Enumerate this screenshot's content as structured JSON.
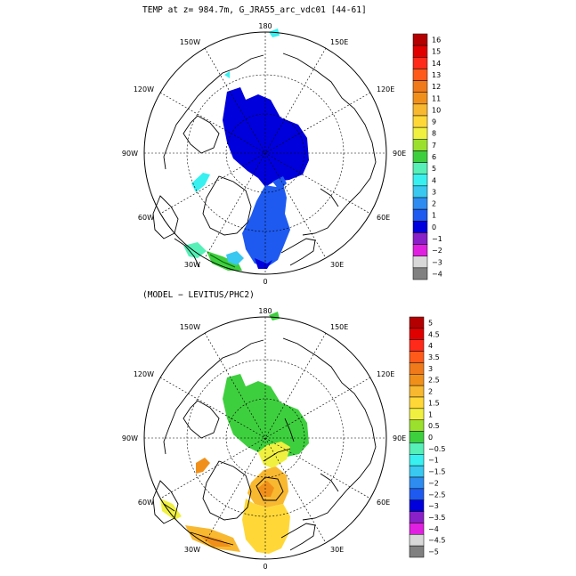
{
  "panel_top": {
    "title": "TEMP at z= 984.7m, G_JRA55_arc_vdc01 [44-61]",
    "lon_labels": [
      "180",
      "150E",
      "120E",
      "90E",
      "60E",
      "30E",
      "0",
      "30W",
      "60W",
      "90W",
      "120W",
      "150W"
    ],
    "colorbar": {
      "labels": [
        "16",
        "15",
        "14",
        "13",
        "12",
        "11",
        "10",
        "9",
        "8",
        "7",
        "6",
        "5",
        "4",
        "3",
        "2",
        "1",
        "0",
        "−1",
        "−2",
        "−3",
        "−4"
      ],
      "colors": [
        "#b40000",
        "#e00000",
        "#ff2a1a",
        "#ff5a1a",
        "#f07a1a",
        "#f0901a",
        "#f8b830",
        "#ffd838",
        "#f0f040",
        "#9ae02c",
        "#3ecf3e",
        "#56f0b8",
        "#38f0f0",
        "#38c8f0",
        "#2e8cf0",
        "#1e5af0",
        "#0000dc",
        "#8a20c8",
        "#e020e0",
        "#d8d8d8",
        "#808080"
      ]
    }
  },
  "panel_bottom": {
    "title": "(MODEL − LEVITUS/PHC2)",
    "lon_labels": [
      "180",
      "150E",
      "120E",
      "90E",
      "60E",
      "30E",
      "0",
      "30W",
      "60W",
      "90W",
      "120W",
      "150W"
    ],
    "colorbar": {
      "labels": [
        "5",
        "4.5",
        "4",
        "3.5",
        "3",
        "2.5",
        "2",
        "1.5",
        "1",
        "0.5",
        "0",
        "−0.5",
        "−1",
        "−1.5",
        "−2",
        "−2.5",
        "−3",
        "−3.5",
        "−4",
        "−4.5",
        "−5"
      ],
      "colors": [
        "#b40000",
        "#e00000",
        "#ff2a1a",
        "#ff5a1a",
        "#f07a1a",
        "#f0901a",
        "#f8b830",
        "#ffd838",
        "#f0f040",
        "#9ae02c",
        "#3ecf3e",
        "#56f0b8",
        "#38f0f0",
        "#38c8f0",
        "#2e8cf0",
        "#1e5af0",
        "#0000dc",
        "#8a20c8",
        "#e020e0",
        "#d8d8d8",
        "#808080"
      ]
    }
  }
}
